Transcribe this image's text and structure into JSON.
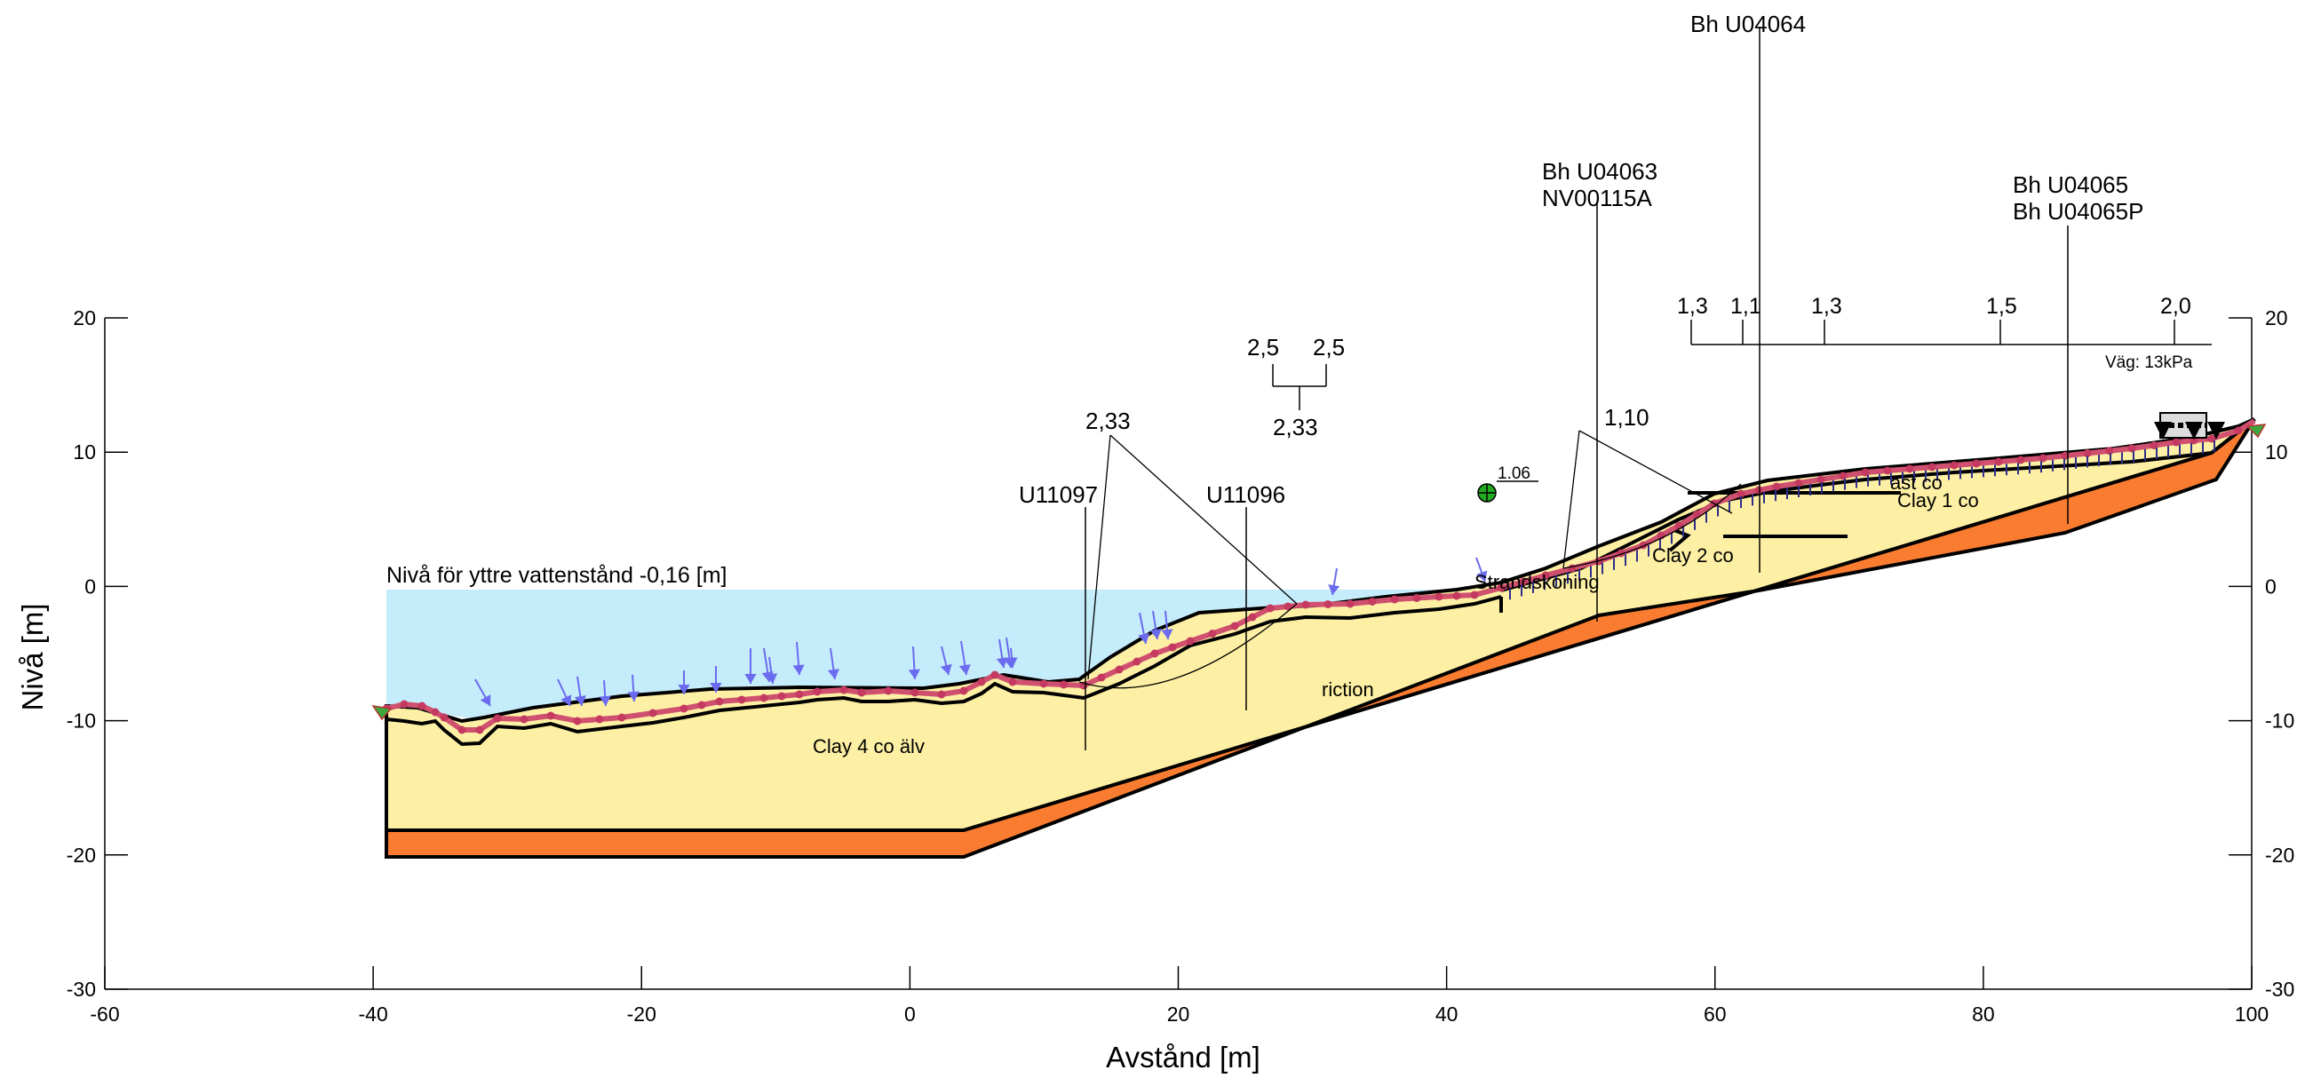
{
  "axes": {
    "x_title": "Avstånd [m]",
    "y_title": "Nivå [m]",
    "x_ticks": [
      "-60",
      "-40",
      "-20",
      "0",
      "20",
      "40",
      "60",
      "80",
      "100"
    ],
    "y_ticks_left": [
      "20",
      "10",
      "0",
      "-10",
      "-20",
      "-30"
    ],
    "y_ticks_right": [
      "20",
      "10",
      "0",
      "-10",
      "-20",
      "-30"
    ],
    "x_range": [
      -60,
      100
    ],
    "y_range": [
      -30,
      20
    ]
  },
  "water": {
    "label": "Nivå för yttre vattenstånd -0,16 [m]",
    "color": "#c5ecfa"
  },
  "materials": {
    "clay4": "Clay 4 co älv",
    "friction": "riction",
    "clay2": "Clay 2 co",
    "clay1": "Clay 1 co",
    "dry": "ast co",
    "strand": "Strandskoning",
    "colors": {
      "clay": "#fdf0a4",
      "bedrock": "#f97c30",
      "surface": "#d05070",
      "load_arrow": "#6b6bf0"
    }
  },
  "boreholes": {
    "u11097": "U11097",
    "u11096": "U11096",
    "bh63_1": "Bh U04063",
    "bh63_2": "NV00115A",
    "bh64": "Bh U04064",
    "bh65_1": "Bh U04065",
    "bh65_2": "Bh U04065P"
  },
  "factors": {
    "fs_233_top": "2,33",
    "fs_25_a": "2,5",
    "fs_25_b": "2,5",
    "fs_233_bottom": "2,33",
    "fs_110": "1,10",
    "fs_106": "1.06",
    "top_row": [
      "1,3",
      "1,1",
      "1,3",
      "1,5",
      "2,0"
    ]
  },
  "load": {
    "label": "Väg: 13kPa"
  }
}
